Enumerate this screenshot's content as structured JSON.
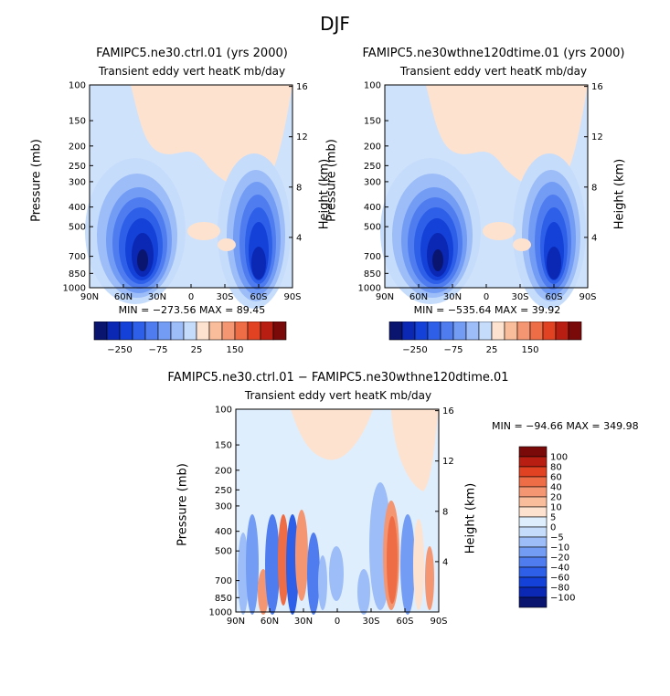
{
  "page_title": "DJF",
  "chart_data": [
    {
      "type": "heatmap",
      "title": "FAMIPC5.ne30.ctrl.01 (yrs 2000)",
      "subtitle": "Transient eddy vert heatK mb/day",
      "ylabel": "Pressure (mb)",
      "y2label": "Height (km)",
      "x_ticks": [
        "90N",
        "60N",
        "30N",
        "0",
        "30S",
        "60S",
        "90S"
      ],
      "y_ticks": [
        "100",
        "150",
        "200",
        "250",
        "300",
        "400",
        "500",
        "700",
        "850",
        "1000"
      ],
      "y2_ticks": [
        "16",
        "12",
        "8",
        "4"
      ],
      "stats": "MIN = −273.56   MAX =  89.45",
      "colorbar_labels": [
        "−250",
        "−75",
        "25",
        "150"
      ]
    },
    {
      "type": "heatmap",
      "title": "FAMIPC5.ne30wthne120dtime.01 (yrs 2000)",
      "subtitle": "Transient eddy vert heatK mb/day",
      "ylabel": "Pressure (mb)",
      "y2label": "Height (km)",
      "x_ticks": [
        "90N",
        "60N",
        "30N",
        "0",
        "30S",
        "60S",
        "90S"
      ],
      "y_ticks": [
        "100",
        "150",
        "200",
        "250",
        "300",
        "400",
        "500",
        "700",
        "850",
        "1000"
      ],
      "y2_ticks": [
        "16",
        "12",
        "8",
        "4"
      ],
      "stats": "MIN = −535.64   MAX =  39.92",
      "colorbar_labels": [
        "−250",
        "−75",
        "25",
        "150"
      ]
    },
    {
      "type": "heatmap",
      "title": "FAMIPC5.ne30.ctrl.01 − FAMIPC5.ne30wthne120dtime.01",
      "subtitle": "Transient eddy vert heatK mb/day",
      "ylabel": "Pressure (mb)",
      "y2label": "Height (km)",
      "x_ticks": [
        "90N",
        "60N",
        "30N",
        "0",
        "30S",
        "60S",
        "90S"
      ],
      "y_ticks": [
        "100",
        "150",
        "200",
        "250",
        "300",
        "400",
        "500",
        "700",
        "850",
        "1000"
      ],
      "y2_ticks": [
        "16",
        "12",
        "8",
        "4"
      ],
      "stats": "MIN = −94.66   MAX = 349.98",
      "colorbar_labels": [
        "100",
        "80",
        "60",
        "40",
        "20",
        "10",
        "5",
        "0",
        "−5",
        "−10",
        "−20",
        "−40",
        "−60",
        "−80",
        "−100"
      ]
    }
  ],
  "colors": {
    "abs_scale": [
      "#0a1570",
      "#0a28b4",
      "#1441d7",
      "#2e5fe8",
      "#4f7df0",
      "#739cf5",
      "#9dbdf8",
      "#c6dcfb",
      "#fde2cf",
      "#f9bd9c",
      "#f49672",
      "#ee6d46",
      "#e14322",
      "#b81f12",
      "#7a0a0a"
    ],
    "diff_scale": [
      "#7a0a0a",
      "#b81f12",
      "#e14322",
      "#ee6d46",
      "#f49672",
      "#f9bd9c",
      "#fde2cf",
      "#dfeefd",
      "#c6dcfb",
      "#9dbdf8",
      "#739cf5",
      "#4f7df0",
      "#2e5fe8",
      "#1441d7",
      "#0a28b4",
      "#0a1570"
    ],
    "field_bg": "#cfe2fb"
  }
}
